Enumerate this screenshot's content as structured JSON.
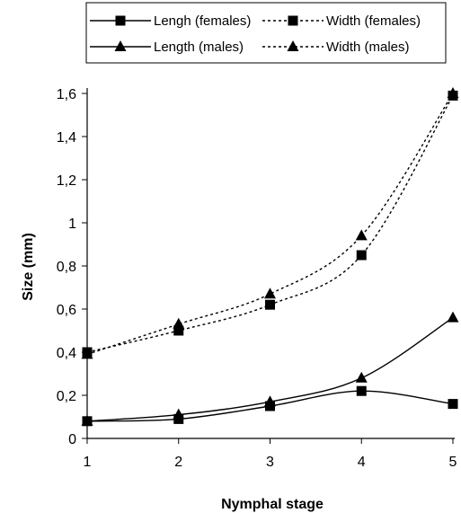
{
  "chart_data": {
    "type": "line",
    "xlabel": "Nymphal stage",
    "ylabel": "Size (mm)",
    "x": [
      1,
      2,
      3,
      4,
      5
    ],
    "xlim": [
      1,
      5
    ],
    "ylim": [
      0,
      1.6
    ],
    "x_ticks": [
      "1",
      "2",
      "3",
      "4",
      "5"
    ],
    "y_ticks": [
      {
        "value": 0,
        "label": "0"
      },
      {
        "value": 0.2,
        "label": "0,2"
      },
      {
        "value": 0.4,
        "label": "0,4"
      },
      {
        "value": 0.6,
        "label": "0,6"
      },
      {
        "value": 0.8,
        "label": "0,8"
      },
      {
        "value": 1.0,
        "label": "1"
      },
      {
        "value": 1.2,
        "label": "1,2"
      },
      {
        "value": 1.4,
        "label": "1,4"
      },
      {
        "value": 1.6,
        "label": "1,6"
      }
    ],
    "grid": false,
    "legend_position": "top",
    "series": [
      {
        "name": "Lengh (females)",
        "marker": "square",
        "dash": "solid",
        "color": "#000000",
        "values": [
          0.08,
          0.09,
          0.15,
          0.22,
          0.16
        ]
      },
      {
        "name": "Width (females)",
        "marker": "square",
        "dash": "dotted",
        "color": "#000000",
        "values": [
          0.4,
          0.5,
          0.62,
          0.85,
          1.59
        ]
      },
      {
        "name": "Length (males)",
        "marker": "triangle",
        "dash": "solid",
        "color": "#000000",
        "values": [
          0.08,
          0.11,
          0.17,
          0.28,
          0.56
        ]
      },
      {
        "name": "Width (males)",
        "marker": "triangle",
        "dash": "dotted",
        "color": "#000000",
        "values": [
          0.39,
          0.53,
          0.67,
          0.94,
          1.6
        ]
      }
    ]
  }
}
